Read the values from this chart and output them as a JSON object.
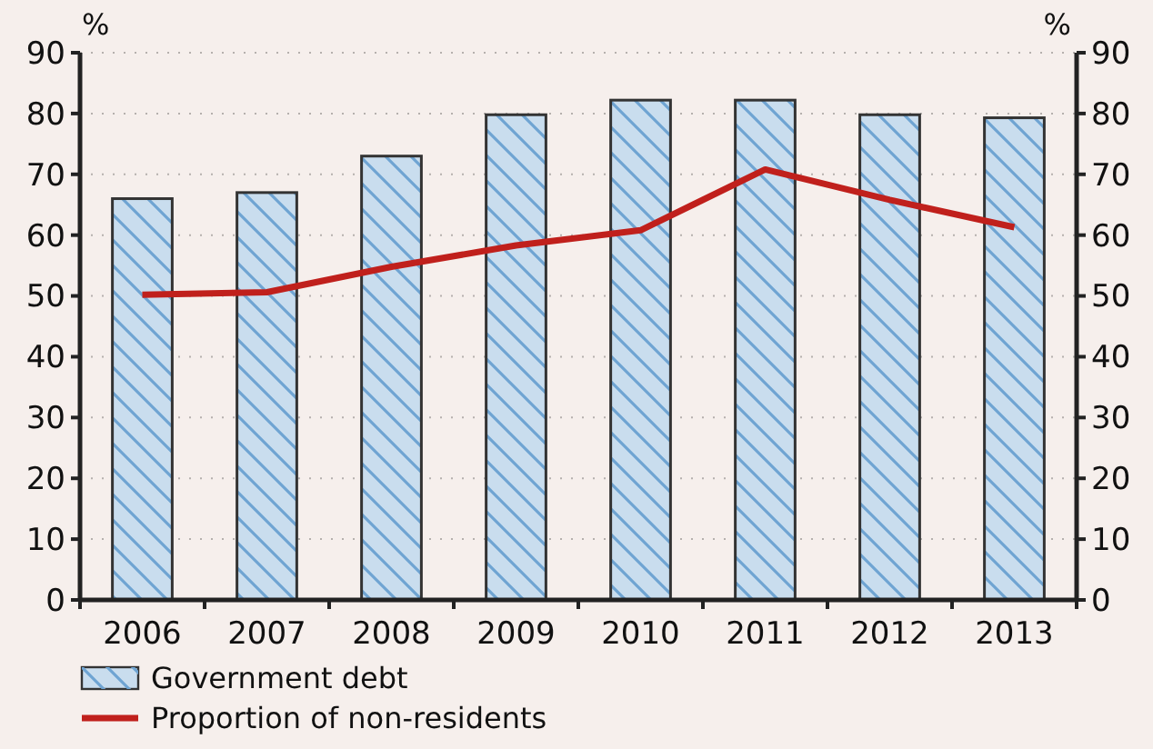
{
  "chart_data": {
    "type": "bar",
    "categories": [
      "2006",
      "2007",
      "2008",
      "2009",
      "2010",
      "2011",
      "2012",
      "2013"
    ],
    "series": [
      {
        "name": "Government debt",
        "color": "#c9ddee",
        "values": [
          66,
          67,
          73,
          79.8,
          82.2,
          82.2,
          79.8,
          79.3
        ]
      },
      {
        "name": "Proportion of non-residents",
        "type": "line",
        "color": "#c0201c",
        "values": [
          50.2,
          50.6,
          54.8,
          58.3,
          60.8,
          70.8,
          65.8,
          61.3
        ]
      }
    ],
    "ylabel": "%",
    "y2label": "%",
    "ylim": [
      0,
      90
    ],
    "yticks": [
      0,
      10,
      20,
      30,
      40,
      50,
      60,
      70,
      80,
      90
    ],
    "y2lim": [
      0,
      90
    ],
    "y2ticks": [
      0,
      10,
      20,
      30,
      40,
      50,
      60,
      70,
      80,
      90
    ],
    "grid": "y",
    "legend": "bottom left"
  }
}
